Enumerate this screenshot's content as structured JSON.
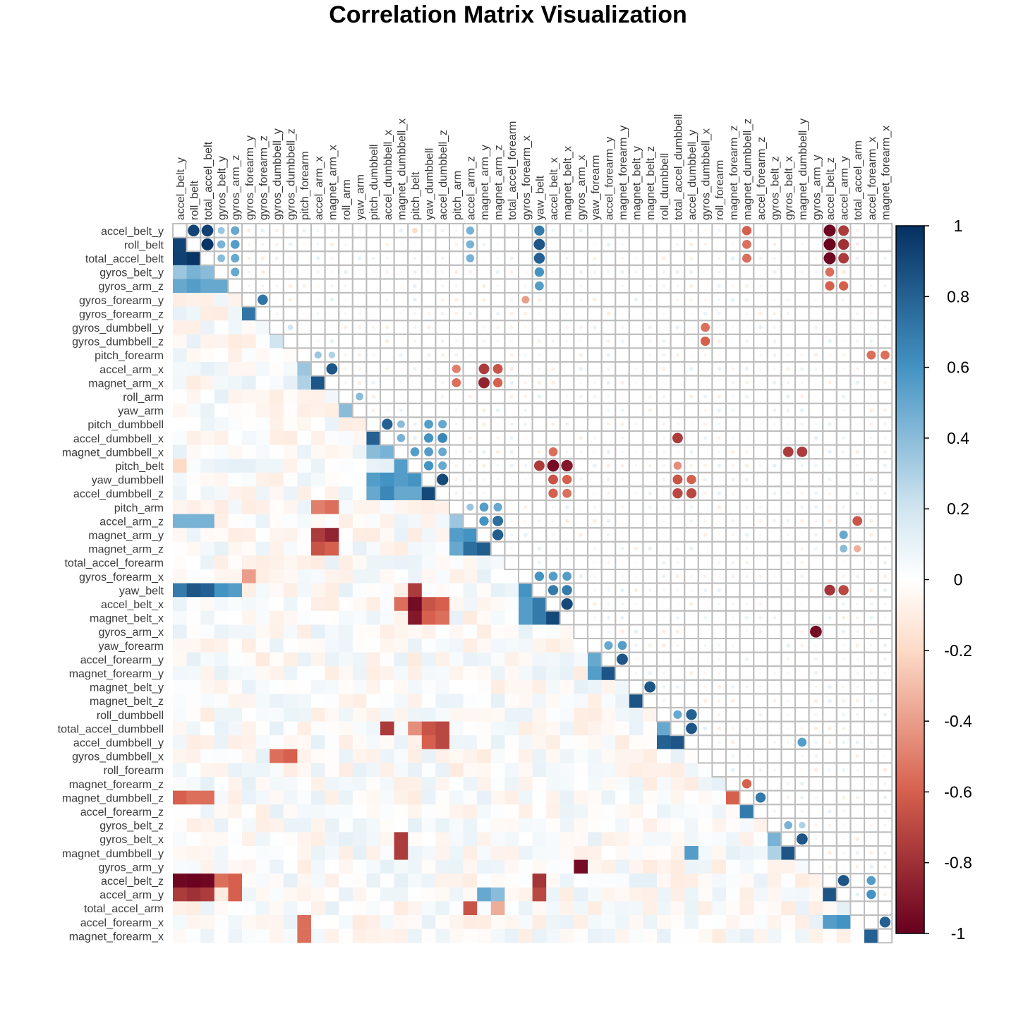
{
  "chart_data": {
    "type": "heatmap",
    "title": "Correlation Matrix Visualization",
    "layout_note": "mixed correlation plot: lower triangle shaded squares, upper triangle circles sized/colored by correlation, diagonal blank",
    "variables": [
      "accel_belt_y",
      "roll_belt",
      "total_accel_belt",
      "gyros_belt_y",
      "gyros_arm_z",
      "gyros_forearm_y",
      "gyros_forearm_z",
      "gyros_dumbbell_y",
      "gyros_dumbbell_z",
      "pitch_forearm",
      "accel_arm_x",
      "magnet_arm_x",
      "roll_arm",
      "yaw_arm",
      "pitch_dumbbell",
      "accel_dumbbell_x",
      "magnet_dumbbell_x",
      "pitch_belt",
      "yaw_dumbbell",
      "accel_dumbbell_z",
      "pitch_arm",
      "accel_arm_z",
      "magnet_arm_y",
      "magnet_arm_z",
      "total_accel_forearm",
      "gyros_forearm_x",
      "yaw_belt",
      "accel_belt_x",
      "magnet_belt_x",
      "gyros_arm_x",
      "yaw_forearm",
      "accel_forearm_y",
      "magnet_forearm_y",
      "magnet_belt_y",
      "magnet_belt_z",
      "roll_dumbbell",
      "total_accel_dumbbell",
      "accel_dumbbell_y",
      "gyros_dumbbell_x",
      "roll_forearm",
      "magnet_forearm_z",
      "magnet_dumbbell_z",
      "accel_forearm_z",
      "gyros_belt_z",
      "gyros_belt_x",
      "magnet_dumbbell_y",
      "gyros_arm_y",
      "accel_belt_z",
      "accel_arm_y",
      "total_accel_arm",
      "accel_forearm_x",
      "magnet_forearm_x"
    ],
    "correlations": [
      [
        "accel_belt_y",
        "roll_belt",
        0.92
      ],
      [
        "accel_belt_y",
        "total_accel_belt",
        0.93
      ],
      [
        "roll_belt",
        "total_accel_belt",
        0.98
      ],
      [
        "accel_belt_y",
        "gyros_belt_y",
        0.35
      ],
      [
        "roll_belt",
        "gyros_belt_y",
        0.45
      ],
      [
        "total_accel_belt",
        "gyros_belt_y",
        0.4
      ],
      [
        "accel_belt_y",
        "gyros_arm_z",
        0.5
      ],
      [
        "roll_belt",
        "gyros_arm_z",
        0.55
      ],
      [
        "total_accel_belt",
        "gyros_arm_z",
        0.5
      ],
      [
        "gyros_belt_y",
        "gyros_arm_z",
        0.5
      ],
      [
        "gyros_forearm_y",
        "gyros_forearm_z",
        0.72
      ],
      [
        "gyros_dumbbell_y",
        "gyros_dumbbell_z",
        0.2
      ],
      [
        "pitch_forearm",
        "accel_arm_x",
        0.35
      ],
      [
        "pitch_forearm",
        "magnet_arm_x",
        0.3
      ],
      [
        "accel_arm_x",
        "magnet_arm_x",
        0.85
      ],
      [
        "roll_arm",
        "yaw_arm",
        0.4
      ],
      [
        "pitch_dumbbell",
        "accel_dumbbell_x",
        0.8
      ],
      [
        "accel_dumbbell_x",
        "magnet_dumbbell_x",
        0.45
      ],
      [
        "pitch_dumbbell",
        "magnet_dumbbell_x",
        0.4
      ],
      [
        "magnet_dumbbell_x",
        "pitch_belt",
        0.55
      ],
      [
        "magnet_dumbbell_x",
        "yaw_dumbbell",
        0.55
      ],
      [
        "magnet_dumbbell_x",
        "accel_dumbbell_z",
        0.5
      ],
      [
        "pitch_dumbbell",
        "yaw_dumbbell",
        0.55
      ],
      [
        "accel_dumbbell_x",
        "yaw_dumbbell",
        0.6
      ],
      [
        "pitch_dumbbell",
        "accel_dumbbell_z",
        0.5
      ],
      [
        "accel_dumbbell_x",
        "accel_dumbbell_z",
        0.65
      ],
      [
        "pitch_belt",
        "yaw_dumbbell",
        0.6
      ],
      [
        "pitch_belt",
        "accel_dumbbell_z",
        0.5
      ],
      [
        "yaw_dumbbell",
        "accel_dumbbell_z",
        0.9
      ],
      [
        "accel_belt_y",
        "accel_arm_z",
        0.45
      ],
      [
        "roll_belt",
        "accel_arm_z",
        0.45
      ],
      [
        "total_accel_belt",
        "accel_arm_z",
        0.45
      ],
      [
        "pitch_arm",
        "accel_arm_z",
        0.35
      ],
      [
        "pitch_arm",
        "magnet_arm_y",
        0.55
      ],
      [
        "pitch_arm",
        "magnet_arm_z",
        0.5
      ],
      [
        "accel_arm_z",
        "magnet_arm_y",
        0.6
      ],
      [
        "accel_arm_z",
        "magnet_arm_z",
        0.75
      ],
      [
        "magnet_arm_y",
        "magnet_arm_z",
        0.82
      ],
      [
        "accel_arm_x",
        "pitch_arm",
        -0.5
      ],
      [
        "magnet_arm_x",
        "pitch_arm",
        -0.55
      ],
      [
        "accel_arm_x",
        "magnet_arm_y",
        -0.75
      ],
      [
        "magnet_arm_x",
        "magnet_arm_y",
        -0.85
      ],
      [
        "accel_arm_x",
        "magnet_arm_z",
        -0.65
      ],
      [
        "magnet_arm_x",
        "magnet_arm_z",
        -0.6
      ],
      [
        "accel_belt_y",
        "yaw_belt",
        0.7
      ],
      [
        "roll_belt",
        "yaw_belt",
        0.85
      ],
      [
        "total_accel_belt",
        "yaw_belt",
        0.8
      ],
      [
        "gyros_belt_y",
        "yaw_belt",
        0.6
      ],
      [
        "gyros_arm_z",
        "yaw_belt",
        0.55
      ],
      [
        "gyros_forearm_x",
        "yaw_belt",
        0.6
      ],
      [
        "gyros_forearm_x",
        "accel_belt_x",
        0.55
      ],
      [
        "gyros_forearm_x",
        "magnet_belt_x",
        0.55
      ],
      [
        "yaw_belt",
        "accel_belt_x",
        0.7
      ],
      [
        "yaw_belt",
        "magnet_belt_x",
        0.7
      ],
      [
        "accel_belt_x",
        "magnet_belt_x",
        0.9
      ],
      [
        "gyros_forearm_y",
        "gyros_forearm_x",
        -0.4
      ],
      [
        "pitch_belt",
        "accel_belt_x",
        -0.95
      ],
      [
        "pitch_belt",
        "magnet_belt_x",
        -0.9
      ],
      [
        "pitch_belt",
        "yaw_belt",
        -0.75
      ],
      [
        "yaw_dumbbell",
        "accel_belt_x",
        -0.65
      ],
      [
        "yaw_dumbbell",
        "magnet_belt_x",
        -0.6
      ],
      [
        "accel_dumbbell_z",
        "accel_belt_x",
        -0.6
      ],
      [
        "accel_dumbbell_z",
        "magnet_belt_x",
        -0.55
      ],
      [
        "accel_belt_y",
        "pitch_belt",
        -0.2
      ],
      [
        "magnet_dumbbell_x",
        "accel_belt_x",
        -0.55
      ],
      [
        "gyros_arm_x",
        "gyros_arm_y",
        -0.95
      ],
      [
        "yaw_forearm",
        "accel_forearm_y",
        0.5
      ],
      [
        "yaw_forearm",
        "magnet_forearm_y",
        0.55
      ],
      [
        "accel_forearm_y",
        "magnet_forearm_y",
        0.85
      ],
      [
        "magnet_belt_y",
        "magnet_belt_z",
        0.85
      ],
      [
        "roll_dumbbell",
        "total_accel_dumbbell",
        0.5
      ],
      [
        "roll_dumbbell",
        "accel_dumbbell_y",
        0.8
      ],
      [
        "total_accel_dumbbell",
        "accel_dumbbell_y",
        0.85
      ],
      [
        "accel_dumbbell_x",
        "total_accel_dumbbell",
        -0.75
      ],
      [
        "pitch_belt",
        "total_accel_dumbbell",
        -0.45
      ],
      [
        "yaw_dumbbell",
        "total_accel_dumbbell",
        -0.65
      ],
      [
        "accel_dumbbell_z",
        "total_accel_dumbbell",
        -0.7
      ],
      [
        "accel_dumbbell_z",
        "accel_dumbbell_y",
        -0.7
      ],
      [
        "yaw_dumbbell",
        "accel_dumbbell_y",
        -0.6
      ],
      [
        "gyros_dumbbell_y",
        "gyros_dumbbell_x",
        -0.55
      ],
      [
        "gyros_dumbbell_z",
        "gyros_dumbbell_x",
        -0.6
      ],
      [
        "magnet_forearm_z",
        "magnet_dumbbell_z",
        -0.6
      ],
      [
        "magnet_dumbbell_z",
        "accel_forearm_z",
        0.7
      ],
      [
        "accel_belt_y",
        "magnet_dumbbell_z",
        -0.6
      ],
      [
        "roll_belt",
        "magnet_dumbbell_z",
        -0.55
      ],
      [
        "total_accel_belt",
        "magnet_dumbbell_z",
        -0.55
      ],
      [
        "gyros_belt_z",
        "gyros_belt_x",
        0.45
      ],
      [
        "gyros_belt_z",
        "magnet_dumbbell_y",
        0.3
      ],
      [
        "gyros_belt_x",
        "magnet_dumbbell_y",
        0.85
      ],
      [
        "magnet_dumbbell_x",
        "gyros_belt_x",
        -0.75
      ],
      [
        "magnet_dumbbell_x",
        "magnet_dumbbell_y",
        -0.75
      ],
      [
        "accel_dumbbell_y",
        "magnet_dumbbell_y",
        0.55
      ],
      [
        "accel_belt_y",
        "accel_belt_z",
        -0.97
      ],
      [
        "roll_belt",
        "accel_belt_z",
        -0.99
      ],
      [
        "total_accel_belt",
        "accel_belt_z",
        -0.97
      ],
      [
        "accel_belt_y",
        "accel_arm_y",
        -0.75
      ],
      [
        "roll_belt",
        "accel_arm_y",
        -0.8
      ],
      [
        "total_accel_belt",
        "accel_arm_y",
        -0.75
      ],
      [
        "yaw_belt",
        "accel_belt_z",
        -0.78
      ],
      [
        "yaw_belt",
        "accel_arm_y",
        -0.7
      ],
      [
        "gyros_belt_y",
        "accel_belt_z",
        -0.55
      ],
      [
        "gyros_arm_z",
        "accel_belt_z",
        -0.6
      ],
      [
        "gyros_arm_z",
        "accel_arm_y",
        -0.6
      ],
      [
        "accel_belt_z",
        "accel_arm_y",
        0.85
      ],
      [
        "accel_arm_z",
        "total_accel_arm",
        -0.65
      ],
      [
        "accel_arm_y",
        "accel_forearm_x",
        0.6
      ],
      [
        "accel_belt_z",
        "accel_forearm_x",
        0.55
      ],
      [
        "pitch_forearm",
        "accel_forearm_x",
        -0.55
      ],
      [
        "pitch_forearm",
        "magnet_forearm_x",
        -0.55
      ],
      [
        "accel_forearm_x",
        "magnet_forearm_x",
        0.8
      ],
      [
        "magnet_arm_y",
        "accel_arm_y",
        0.5
      ],
      [
        "magnet_arm_z",
        "accel_arm_y",
        0.4
      ],
      [
        "magnet_arm_z",
        "total_accel_arm",
        -0.35
      ]
    ],
    "scale": {
      "min": -1,
      "max": 1,
      "ticks": [
        1,
        0.8,
        0.6,
        0.4,
        0.2,
        0,
        -0.2,
        -0.4,
        -0.6,
        -0.8,
        -1
      ]
    },
    "colors": {
      "neg_strong": "#67001F",
      "neg_mid": "#D6604D",
      "neg_light": "#FDDBC7",
      "zero": "#FFFFFF",
      "pos_light": "#D1E5F0",
      "pos_mid": "#4393C3",
      "pos_strong": "#053061",
      "grid": "#BEBEBE"
    }
  }
}
